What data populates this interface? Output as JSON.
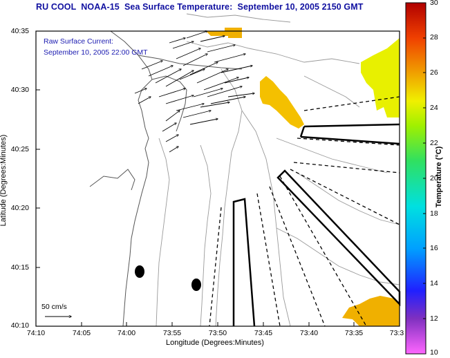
{
  "title": "RU COOL  NOAA-15  Sea Surface Temperature:  September 10, 2005 2150 GMT",
  "current_legend": {
    "line1": "Raw Surface Current:",
    "line2": "September 10, 2005 22:00 GMT"
  },
  "y_axis": {
    "title": "Latitude (Degrees:Minutes)",
    "ticks": [
      "40:35",
      "40:30",
      "40:25",
      "40:20",
      "40:15",
      "40:10"
    ]
  },
  "x_axis": {
    "title": "Longitude (Degrees:Minutes)",
    "ticks": [
      "74:10",
      "74:05",
      "74:00",
      "73:55",
      "73:50",
      "73:45",
      "73:40",
      "73:35",
      "73:3"
    ]
  },
  "colorbar": {
    "title": "Temperature (°C)",
    "labels": [
      "30",
      "28",
      "26",
      "24",
      "22",
      "20",
      "18",
      "16",
      "14",
      "12",
      "10"
    ],
    "min": 10,
    "max": 30
  },
  "scale_bar": {
    "label": "50 cm/s"
  },
  "colors": {
    "title": "#1010a0",
    "sst_warm": "#f4c000",
    "sst_yellow": "#f0f000",
    "sst_orange": "#f0b000"
  }
}
